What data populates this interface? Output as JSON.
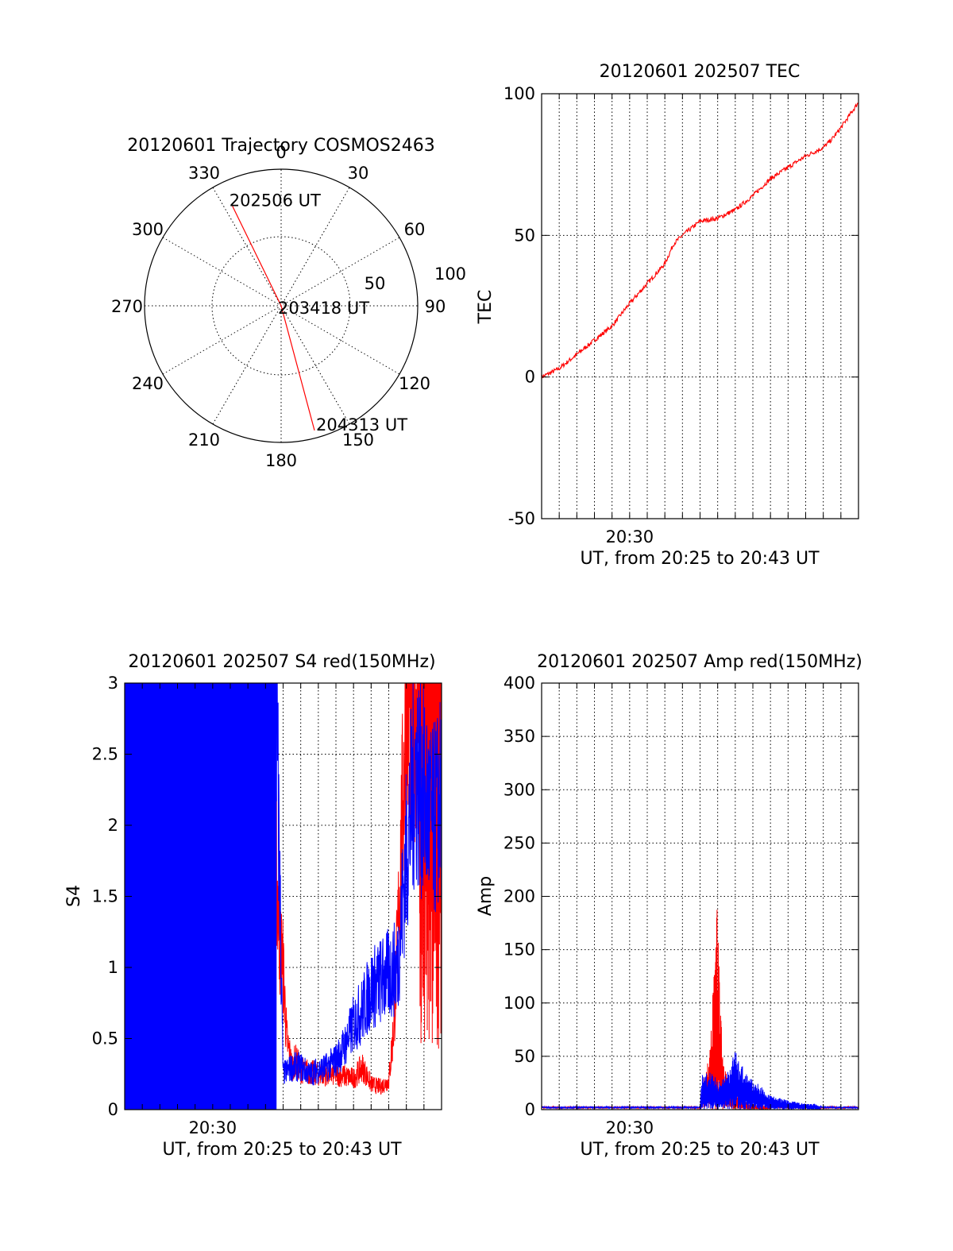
{
  "colors": {
    "red": "#ff0000",
    "blue": "#0000ff",
    "axis": "#000000",
    "background": "#ffffff"
  },
  "chart_data": [
    {
      "type": "polar",
      "title": "20120601 Trajectory COSMOS2463",
      "angle_labels": [
        "0",
        "30",
        "60",
        "90",
        "120",
        "150",
        "180",
        "210",
        "240",
        "270",
        "300",
        "330"
      ],
      "radial_labels": [
        "50",
        "100"
      ],
      "radial_max": 90,
      "grid": true,
      "series": [
        {
          "color": "#ff0000",
          "points": [
            {
              "azimuth": 334,
              "radius": 73,
              "label": "202506 UT"
            },
            {
              "azimuth": 0,
              "radius": 0,
              "label": "203418 UT"
            },
            {
              "azimuth": 165,
              "radius": 85,
              "label": "204313 UT"
            }
          ]
        }
      ]
    },
    {
      "type": "line",
      "title": "20120601 202507 TEC",
      "xlabel": "UT, from 20:25 to 20:43 UT",
      "ylabel": "TEC",
      "x_unit": "minutes after 20:25 UT",
      "xlim": [
        0,
        18
      ],
      "ylim": [
        -50,
        100
      ],
      "yticks": [
        -50,
        0,
        50,
        100
      ],
      "xtick_labels": [
        {
          "x": 5,
          "label": "20:30"
        }
      ],
      "grid": true,
      "series": [
        {
          "color": "#ff0000",
          "x": [
            0,
            1,
            2,
            3,
            4,
            5,
            6,
            7,
            7.5,
            8,
            9,
            10,
            11,
            12,
            13,
            14,
            15,
            16,
            16.5,
            17,
            18
          ],
          "y": [
            0,
            3,
            8,
            13,
            18,
            26,
            33,
            40,
            47,
            50,
            55,
            56,
            59,
            64,
            70,
            74,
            78,
            81,
            84,
            88,
            97
          ]
        }
      ]
    },
    {
      "type": "line",
      "title": "20120601 202507 S4 red(150MHz)",
      "xlabel": "UT, from 20:25 to 20:43 UT",
      "ylabel": "S4",
      "x_unit": "minutes after 20:25 UT",
      "xlim": [
        0,
        18
      ],
      "ylim": [
        0,
        3
      ],
      "yticks": [
        0,
        0.5,
        1,
        1.5,
        2,
        2.5,
        3
      ],
      "xtick_labels": [
        {
          "x": 5,
          "label": "20:30"
        }
      ],
      "grid": true,
      "series": [
        {
          "color": "#ff0000",
          "x": [
            0,
            8.4,
            8.5,
            8.6,
            8.8,
            9.0,
            9.2,
            9.5,
            9.7,
            10,
            11,
            12,
            13,
            13.5,
            14,
            14.5,
            15,
            15.3,
            15.5,
            16,
            17,
            18
          ],
          "y": [
            3.0,
            3.0,
            2.5,
            1.8,
            1.2,
            1.0,
            0.5,
            0.3,
            0.35,
            0.28,
            0.25,
            0.25,
            0.22,
            0.3,
            0.18,
            0.16,
            0.2,
            0.6,
            1.2,
            2.8,
            3.0,
            3.0
          ]
        },
        {
          "color": "#0000ff",
          "x": [
            0,
            8.6,
            9.0,
            9.5,
            10,
            10.5,
            11,
            11.5,
            12,
            12.5,
            13,
            13.5,
            14,
            14.5,
            15,
            15.5,
            16,
            16.5,
            17,
            17.5,
            18
          ],
          "y": [
            3.0,
            3.0,
            0.25,
            0.3,
            0.3,
            0.25,
            0.28,
            0.3,
            0.35,
            0.45,
            0.6,
            0.7,
            0.85,
            0.9,
            0.95,
            1.0,
            1.8,
            2.4,
            2.2,
            2.0,
            2.2
          ]
        }
      ]
    },
    {
      "type": "line",
      "title": "20120601 202507 Amp red(150MHz)",
      "xlabel": "UT, from 20:25 to 20:43 UT",
      "ylabel": "Amp",
      "x_unit": "minutes after 20:25 UT",
      "xlim": [
        0,
        18
      ],
      "ylim": [
        0,
        400
      ],
      "yticks": [
        0,
        50,
        100,
        150,
        200,
        250,
        300,
        350,
        400
      ],
      "xtick_labels": [
        {
          "x": 5,
          "label": "20:30"
        }
      ],
      "grid": true,
      "series": [
        {
          "color": "#ff0000",
          "x": [
            0,
            9.0,
            9.1,
            9.5,
            9.7,
            9.9,
            10.1,
            10.3,
            10.6,
            11.0,
            11.5,
            12,
            13,
            14,
            15,
            16,
            17,
            18
          ],
          "y": [
            2,
            2,
            20,
            45,
            90,
            200,
            120,
            40,
            25,
            15,
            8,
            5,
            3,
            2,
            2,
            2,
            2,
            2
          ]
        },
        {
          "color": "#0000ff",
          "x": [
            0,
            9.0,
            9.1,
            9.5,
            10,
            10.5,
            11,
            11.5,
            12,
            12.5,
            13,
            14,
            15,
            15.5,
            16,
            17,
            18
          ],
          "y": [
            2,
            2,
            30,
            35,
            25,
            30,
            50,
            35,
            25,
            20,
            12,
            8,
            5,
            5,
            2,
            2,
            2
          ]
        }
      ]
    }
  ]
}
